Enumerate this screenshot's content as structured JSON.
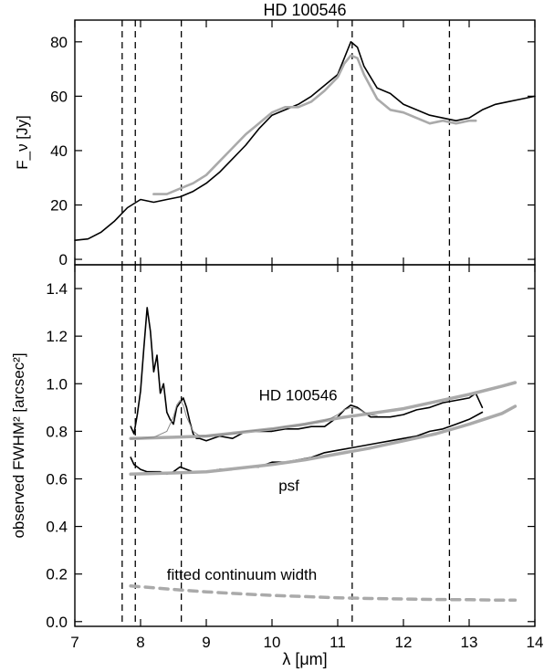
{
  "chart_data": [
    {
      "type": "line",
      "title": "HD 100546",
      "ylabel": "F_ν [Jy]",
      "xlabel": "",
      "xlim": [
        7,
        14
      ],
      "ylim": [
        -2,
        88
      ],
      "yticks": [
        0,
        20,
        40,
        60,
        80
      ],
      "vlines": [
        7.72,
        7.92,
        8.62,
        11.22,
        12.7
      ],
      "series": [
        {
          "color": "#000000",
          "x": [
            7.0,
            7.2,
            7.4,
            7.6,
            7.8,
            8.0,
            8.2,
            8.4,
            8.6,
            8.8,
            9.0,
            9.2,
            9.4,
            9.6,
            9.8,
            10.0,
            10.2,
            10.4,
            10.6,
            10.8,
            11.0,
            11.1,
            11.2,
            11.3,
            11.4,
            11.6,
            11.8,
            12.0,
            12.2,
            12.4,
            12.6,
            12.8,
            13.0,
            13.2,
            13.4,
            13.6,
            13.8,
            14.0
          ],
          "y": [
            7,
            7.5,
            10,
            14,
            19,
            22,
            21,
            22,
            23,
            25,
            28,
            32,
            37,
            42,
            48,
            53,
            55,
            57,
            60,
            64,
            68,
            74,
            80,
            78,
            71,
            63,
            61,
            57,
            55,
            53,
            52,
            51,
            52,
            55,
            57,
            58,
            59,
            60
          ]
        },
        {
          "color": "#aaaaaa",
          "x": [
            8.2,
            8.4,
            8.6,
            8.8,
            9.0,
            9.2,
            9.4,
            9.6,
            9.8,
            10.0,
            10.2,
            10.4,
            10.6,
            10.8,
            11.0,
            11.1,
            11.2,
            11.3,
            11.4,
            11.6,
            11.8,
            12.0,
            12.2,
            12.4,
            12.6,
            12.8,
            13.0,
            13.1
          ],
          "y": [
            24,
            24,
            26,
            28,
            31,
            36,
            41,
            46,
            50,
            54,
            56,
            56,
            58,
            62,
            67,
            72,
            75,
            74,
            68,
            59,
            55,
            54,
            52,
            50,
            51,
            50,
            51,
            51
          ]
        }
      ]
    },
    {
      "type": "line",
      "xlabel": "λ [μm]",
      "ylabel": "observed FWHM² [arcsec²]",
      "xlim": [
        7,
        14
      ],
      "ylim": [
        -0.02,
        1.5
      ],
      "xticks": [
        7,
        8,
        9,
        10,
        11,
        12,
        13,
        14
      ],
      "yticks": [
        0.0,
        0.2,
        0.4,
        0.6,
        0.8,
        1.0,
        1.2,
        1.4
      ],
      "vlines": [
        7.72,
        7.92,
        8.62,
        11.22,
        12.7
      ],
      "annotations": [
        {
          "text": "HD 100546",
          "x": 9.8,
          "y": 0.93
        },
        {
          "text": "psf",
          "x": 10.1,
          "y": 0.55
        },
        {
          "text": "fitted continuum width",
          "x": 8.4,
          "y": 0.175
        }
      ],
      "series": [
        {
          "color": "#000000",
          "x": [
            7.85,
            7.9,
            7.95,
            8.0,
            8.05,
            8.1,
            8.15,
            8.2,
            8.25,
            8.3,
            8.35,
            8.4,
            8.45,
            8.5,
            8.55,
            8.6,
            8.65,
            8.7,
            8.75,
            8.8,
            8.85,
            8.9,
            9.0,
            9.2,
            9.4,
            9.6,
            9.8,
            10.0,
            10.2,
            10.4,
            10.6,
            10.8,
            11.0,
            11.1,
            11.2,
            11.3,
            11.4,
            11.5,
            11.6,
            11.8,
            12.0,
            12.2,
            12.4,
            12.6,
            12.8,
            13.0,
            13.1,
            13.2
          ],
          "y": [
            0.82,
            0.79,
            0.87,
            0.97,
            1.15,
            1.32,
            1.22,
            1.05,
            1.12,
            0.96,
            1.0,
            0.88,
            0.85,
            0.83,
            0.9,
            0.92,
            0.94,
            0.9,
            0.84,
            0.79,
            0.77,
            0.77,
            0.76,
            0.78,
            0.77,
            0.8,
            0.8,
            0.8,
            0.81,
            0.81,
            0.82,
            0.82,
            0.86,
            0.89,
            0.91,
            0.9,
            0.88,
            0.86,
            0.86,
            0.86,
            0.87,
            0.89,
            0.9,
            0.92,
            0.93,
            0.94,
            0.96,
            0.9
          ]
        },
        {
          "color": "#000000",
          "x": [
            7.85,
            7.9,
            7.95,
            8.0,
            8.1,
            8.2,
            8.3,
            8.4,
            8.5,
            8.6,
            8.7,
            8.8,
            9.0,
            9.2,
            9.4,
            9.6,
            9.8,
            10.0,
            10.2,
            10.4,
            10.6,
            10.8,
            11.0,
            11.2,
            11.4,
            11.6,
            11.8,
            12.0,
            12.2,
            12.4,
            12.6,
            12.8,
            13.0,
            13.2
          ],
          "y": [
            0.69,
            0.66,
            0.65,
            0.64,
            0.63,
            0.63,
            0.63,
            0.62,
            0.63,
            0.65,
            0.64,
            0.63,
            0.63,
            0.64,
            0.64,
            0.65,
            0.65,
            0.67,
            0.67,
            0.68,
            0.69,
            0.71,
            0.72,
            0.73,
            0.74,
            0.75,
            0.76,
            0.77,
            0.78,
            0.8,
            0.81,
            0.83,
            0.85,
            0.88
          ]
        },
        {
          "color": "#aaaaaa",
          "x": [
            7.85,
            8.5,
            9.0,
            9.5,
            10.0,
            10.5,
            11.0,
            11.5,
            12.0,
            12.5,
            13.0,
            13.5,
            13.7
          ],
          "y": [
            0.77,
            0.775,
            0.78,
            0.795,
            0.81,
            0.83,
            0.855,
            0.875,
            0.895,
            0.925,
            0.955,
            0.99,
            1.005
          ]
        },
        {
          "color": "#aaaaaa",
          "x": [
            7.85,
            8.5,
            9.0,
            9.5,
            10.0,
            10.5,
            11.0,
            11.5,
            12.0,
            12.5,
            13.0,
            13.5,
            13.7
          ],
          "y": [
            0.62,
            0.625,
            0.63,
            0.645,
            0.66,
            0.68,
            0.705,
            0.73,
            0.76,
            0.79,
            0.83,
            0.875,
            0.905
          ]
        },
        {
          "color": "#aaaaaa",
          "x": [
            7.85,
            8.5,
            9.0,
            9.5,
            10.0,
            10.5,
            11.0,
            11.5,
            12.0,
            12.5,
            13.0,
            13.5,
            13.7
          ],
          "y": [
            0.15,
            0.135,
            0.125,
            0.117,
            0.11,
            0.105,
            0.1,
            0.097,
            0.095,
            0.093,
            0.092,
            0.09,
            0.09
          ]
        },
        {
          "color": "#888888",
          "x": [
            7.85,
            8.0,
            8.2,
            8.4,
            8.5,
            8.55,
            8.6,
            8.65,
            8.7,
            8.8,
            8.9,
            9.0,
            9.2,
            9.4,
            9.6,
            9.8,
            10.0,
            10.2,
            10.4,
            10.6,
            10.8,
            10.9,
            11.0,
            11.1,
            11.2,
            11.3,
            11.4,
            11.5,
            11.6
          ],
          "y": [
            0.77,
            0.77,
            0.775,
            0.8,
            0.86,
            0.91,
            0.93,
            0.91,
            0.86,
            0.8,
            0.78,
            0.78,
            0.785,
            0.79,
            0.8,
            0.805,
            0.81,
            0.82,
            0.825,
            0.835,
            0.845,
            0.855,
            0.87,
            0.89,
            0.9,
            0.895,
            0.88,
            0.87,
            0.865
          ]
        }
      ]
    }
  ]
}
